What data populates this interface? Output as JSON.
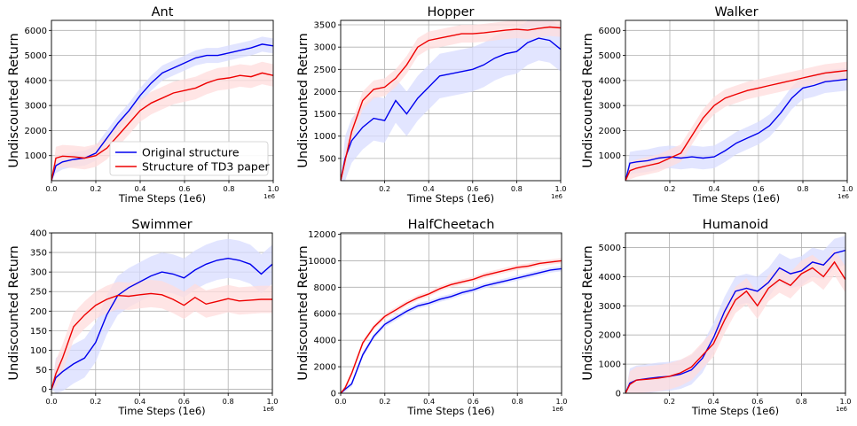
{
  "legend": {
    "entries": [
      {
        "label": "Original structure",
        "color": "#0000ee"
      },
      {
        "label": "Structure of TD3 paper",
        "color": "#ee0000"
      }
    ],
    "placement": "lower-right of Ant panel"
  },
  "colors": {
    "original": "#0000ee",
    "td3": "#ee0000",
    "original_band": "#d8dcff",
    "td3_band": "#ffdcdc"
  },
  "chart_data": [
    {
      "type": "line",
      "title": "Ant",
      "xlabel": "Time Steps (1e6)",
      "ylabel": "Undiscounted Return",
      "x_offset_label": "1e6",
      "xlim": [
        0,
        1.0
      ],
      "ylim": [
        0,
        6400
      ],
      "xticks": [
        0.0,
        0.2,
        0.4,
        0.6,
        0.8,
        1.0
      ],
      "xtick_labels": [
        "0.0",
        "0.2",
        "0.4",
        "0.6",
        "0.8",
        "1.0"
      ],
      "yticks": [
        1000,
        2000,
        3000,
        4000,
        5000,
        6000
      ],
      "ytick_labels": [
        "1000",
        "2000",
        "3000",
        "4000",
        "5000",
        "6000"
      ],
      "grid": true,
      "legend": true,
      "series": [
        {
          "name": "Original structure",
          "x": [
            0,
            0.02,
            0.05,
            0.1,
            0.15,
            0.2,
            0.25,
            0.3,
            0.35,
            0.4,
            0.45,
            0.5,
            0.55,
            0.6,
            0.65,
            0.7,
            0.75,
            0.8,
            0.85,
            0.9,
            0.95,
            1.0
          ],
          "y": [
            0,
            600,
            750,
            850,
            900,
            1100,
            1700,
            2300,
            2800,
            3400,
            3900,
            4300,
            4500,
            4700,
            4900,
            5000,
            5000,
            5100,
            5200,
            5300,
            5450,
            5380
          ],
          "band": 300
        },
        {
          "name": "Structure of TD3 paper",
          "x": [
            0,
            0.02,
            0.05,
            0.1,
            0.15,
            0.2,
            0.25,
            0.3,
            0.35,
            0.4,
            0.45,
            0.5,
            0.55,
            0.6,
            0.65,
            0.7,
            0.75,
            0.8,
            0.85,
            0.9,
            0.95,
            1.0
          ],
          "y": [
            0,
            900,
            980,
            950,
            900,
            1000,
            1300,
            1800,
            2300,
            2800,
            3100,
            3300,
            3500,
            3600,
            3700,
            3900,
            4050,
            4100,
            4200,
            4150,
            4300,
            4200
          ],
          "band": 450
        }
      ]
    },
    {
      "type": "line",
      "title": "Hopper",
      "xlabel": "Time Steps (1e6)",
      "ylabel": "Undiscounted Return",
      "x_offset_label": "1e6",
      "xlim": [
        0,
        1.0
      ],
      "ylim": [
        0,
        3600
      ],
      "xticks": [
        0.2,
        0.4,
        0.6,
        0.8,
        1.0
      ],
      "xtick_labels": [
        "0.2",
        "0.4",
        "0.6",
        "0.8",
        "1.0"
      ],
      "yticks": [
        500,
        1000,
        1500,
        2000,
        2500,
        3000,
        3500
      ],
      "ytick_labels": [
        "500",
        "1000",
        "1500",
        "2000",
        "2500",
        "3000",
        "3500"
      ],
      "grid": true,
      "legend": false,
      "series": [
        {
          "name": "Original structure",
          "x": [
            0,
            0.02,
            0.05,
            0.1,
            0.15,
            0.2,
            0.25,
            0.3,
            0.35,
            0.4,
            0.45,
            0.5,
            0.55,
            0.6,
            0.65,
            0.7,
            0.75,
            0.8,
            0.85,
            0.9,
            0.95,
            1.0
          ],
          "y": [
            0,
            500,
            900,
            1200,
            1400,
            1350,
            1800,
            1500,
            1850,
            2100,
            2350,
            2400,
            2450,
            2500,
            2600,
            2750,
            2850,
            2900,
            3100,
            3200,
            3150,
            2950
          ],
          "band": 500
        },
        {
          "name": "Structure of TD3 paper",
          "x": [
            0,
            0.02,
            0.05,
            0.1,
            0.15,
            0.2,
            0.25,
            0.3,
            0.35,
            0.4,
            0.45,
            0.5,
            0.55,
            0.6,
            0.65,
            0.7,
            0.75,
            0.8,
            0.85,
            0.9,
            0.95,
            1.0
          ],
          "y": [
            0,
            450,
            1100,
            1800,
            2050,
            2100,
            2300,
            2600,
            3000,
            3150,
            3200,
            3250,
            3300,
            3300,
            3320,
            3350,
            3380,
            3400,
            3380,
            3420,
            3450,
            3430
          ],
          "band": 200
        }
      ]
    },
    {
      "type": "line",
      "title": "Walker",
      "xlabel": "Time Steps (1e6)",
      "ylabel": "Undiscounted Return",
      "x_offset_label": "1e6",
      "xlim": [
        0,
        1.0
      ],
      "ylim": [
        0,
        6400
      ],
      "xticks": [
        0.2,
        0.4,
        0.6,
        0.8,
        1.0
      ],
      "xtick_labels": [
        "0.2",
        "0.4",
        "0.6",
        "0.8",
        "1.0"
      ],
      "yticks": [
        1000,
        2000,
        3000,
        4000,
        5000,
        6000
      ],
      "ytick_labels": [
        "1000",
        "2000",
        "3000",
        "4000",
        "5000",
        "6000"
      ],
      "grid": true,
      "legend": false,
      "series": [
        {
          "name": "Original structure",
          "x": [
            0,
            0.02,
            0.05,
            0.1,
            0.15,
            0.2,
            0.25,
            0.3,
            0.35,
            0.4,
            0.45,
            0.5,
            0.55,
            0.6,
            0.65,
            0.7,
            0.75,
            0.8,
            0.85,
            0.9,
            0.95,
            1.0
          ],
          "y": [
            0,
            700,
            750,
            800,
            900,
            950,
            900,
            950,
            900,
            950,
            1200,
            1500,
            1700,
            1900,
            2200,
            2700,
            3300,
            3700,
            3800,
            3950,
            4000,
            4050
          ],
          "band": 450
        },
        {
          "name": "Structure of TD3 paper",
          "x": [
            0,
            0.02,
            0.05,
            0.1,
            0.15,
            0.2,
            0.25,
            0.3,
            0.35,
            0.4,
            0.45,
            0.5,
            0.55,
            0.6,
            0.65,
            0.7,
            0.75,
            0.8,
            0.85,
            0.9,
            0.95,
            1.0
          ],
          "y": [
            0,
            400,
            500,
            600,
            700,
            900,
            1100,
            1800,
            2500,
            3000,
            3300,
            3450,
            3600,
            3700,
            3800,
            3900,
            4000,
            4100,
            4200,
            4300,
            4350,
            4400
          ],
          "band": 350
        }
      ]
    },
    {
      "type": "line",
      "title": "Swimmer",
      "xlabel": "Time Steps (1e6)",
      "ylabel": "Undiscounted Return",
      "x_offset_label": "1e6",
      "xlim": [
        0,
        1.0
      ],
      "ylim": [
        -10,
        400
      ],
      "xticks": [
        0.0,
        0.2,
        0.4,
        0.6,
        0.8,
        1.0
      ],
      "xtick_labels": [
        "0.0",
        "0.2",
        "0.4",
        "0.6",
        "0.8",
        "1.0"
      ],
      "yticks": [
        0,
        50,
        100,
        150,
        200,
        250,
        300,
        350,
        400
      ],
      "ytick_labels": [
        "0",
        "50",
        "100",
        "150",
        "200",
        "250",
        "300",
        "350",
        "400"
      ],
      "grid": true,
      "legend": false,
      "series": [
        {
          "name": "Original structure",
          "x": [
            0,
            0.02,
            0.05,
            0.1,
            0.15,
            0.2,
            0.25,
            0.3,
            0.35,
            0.4,
            0.45,
            0.5,
            0.55,
            0.6,
            0.65,
            0.7,
            0.75,
            0.8,
            0.85,
            0.9,
            0.95,
            1.0
          ],
          "y": [
            0,
            30,
            45,
            65,
            80,
            120,
            190,
            240,
            260,
            275,
            290,
            300,
            295,
            285,
            305,
            320,
            330,
            335,
            330,
            320,
            295,
            320
          ],
          "band": 50
        },
        {
          "name": "Structure of TD3 paper",
          "x": [
            0,
            0.02,
            0.05,
            0.1,
            0.15,
            0.2,
            0.25,
            0.3,
            0.35,
            0.4,
            0.45,
            0.5,
            0.55,
            0.6,
            0.65,
            0.7,
            0.75,
            0.8,
            0.85,
            0.9,
            0.95,
            1.0
          ],
          "y": [
            0,
            40,
            80,
            160,
            190,
            215,
            230,
            240,
            238,
            242,
            245,
            242,
            230,
            215,
            235,
            218,
            225,
            232,
            226,
            228,
            230,
            230
          ],
          "band": 35
        }
      ]
    },
    {
      "type": "line",
      "title": "HalfCheetach",
      "xlabel": "Time Steps (1e6)",
      "ylabel": "Undiscounted Return",
      "x_offset_label": "1e6",
      "xlim": [
        0,
        1.0
      ],
      "ylim": [
        0,
        12100
      ],
      "xticks": [
        0.0,
        0.2,
        0.4,
        0.6,
        0.8,
        1.0
      ],
      "xtick_labels": [
        "0.0",
        "0.2",
        "0.4",
        "0.6",
        "0.8",
        "1.0"
      ],
      "yticks": [
        0,
        2000,
        4000,
        6000,
        8000,
        10000,
        12000
      ],
      "ytick_labels": [
        "0",
        "2000",
        "4000",
        "6000",
        "8000",
        "10000",
        "12000"
      ],
      "grid": true,
      "legend": false,
      "series": [
        {
          "name": "Original structure",
          "x": [
            0,
            0.02,
            0.05,
            0.1,
            0.15,
            0.2,
            0.25,
            0.3,
            0.35,
            0.4,
            0.45,
            0.5,
            0.55,
            0.6,
            0.65,
            0.7,
            0.75,
            0.8,
            0.85,
            0.9,
            0.95,
            1.0
          ],
          "y": [
            0,
            300,
            700,
            2900,
            4300,
            5200,
            5700,
            6200,
            6600,
            6800,
            7100,
            7300,
            7600,
            7800,
            8100,
            8300,
            8500,
            8700,
            8900,
            9100,
            9300,
            9400
          ],
          "band": 200
        },
        {
          "name": "Structure of TD3 paper",
          "x": [
            0,
            0.02,
            0.05,
            0.1,
            0.15,
            0.2,
            0.25,
            0.3,
            0.35,
            0.4,
            0.45,
            0.5,
            0.55,
            0.6,
            0.65,
            0.7,
            0.75,
            0.8,
            0.85,
            0.9,
            0.95,
            1.0
          ],
          "y": [
            0,
            400,
            1500,
            3800,
            5000,
            5800,
            6300,
            6800,
            7200,
            7500,
            7900,
            8200,
            8400,
            8600,
            8900,
            9100,
            9300,
            9500,
            9600,
            9800,
            9900,
            10000
          ],
          "band": 200
        }
      ]
    },
    {
      "type": "line",
      "title": "Humanoid",
      "xlabel": "Time Steps (1e6)",
      "ylabel": "Undiscounted Return",
      "x_offset_label": "1e6",
      "xlim": [
        0,
        1.0
      ],
      "ylim": [
        0,
        5500
      ],
      "xticks": [
        0.2,
        0.4,
        0.6,
        0.8,
        1.0
      ],
      "xtick_labels": [
        "0.2",
        "0.4",
        "0.6",
        "0.8",
        "1.0"
      ],
      "yticks": [
        0,
        1000,
        2000,
        3000,
        4000,
        5000
      ],
      "ytick_labels": [
        "0",
        "1000",
        "2000",
        "3000",
        "4000",
        "5000"
      ],
      "grid": true,
      "legend": false,
      "series": [
        {
          "name": "Original structure",
          "x": [
            0,
            0.02,
            0.05,
            0.1,
            0.15,
            0.2,
            0.25,
            0.3,
            0.35,
            0.4,
            0.45,
            0.5,
            0.55,
            0.6,
            0.65,
            0.7,
            0.75,
            0.8,
            0.85,
            0.9,
            0.95,
            1.0
          ],
          "y": [
            0,
            350,
            450,
            500,
            550,
            580,
            650,
            800,
            1200,
            1900,
            2800,
            3500,
            3600,
            3500,
            3800,
            4300,
            4100,
            4200,
            4500,
            4400,
            4800,
            4900
          ],
          "band": 500
        },
        {
          "name": "Structure of TD3 paper",
          "x": [
            0,
            0.02,
            0.05,
            0.1,
            0.15,
            0.2,
            0.25,
            0.3,
            0.35,
            0.4,
            0.45,
            0.5,
            0.55,
            0.6,
            0.65,
            0.7,
            0.75,
            0.8,
            0.85,
            0.9,
            0.95,
            1.0
          ],
          "y": [
            0,
            300,
            450,
            480,
            520,
            580,
            700,
            900,
            1300,
            1700,
            2500,
            3200,
            3500,
            3000,
            3600,
            3900,
            3700,
            4100,
            4300,
            4000,
            4500,
            3900
          ],
          "band": 450
        }
      ]
    }
  ]
}
